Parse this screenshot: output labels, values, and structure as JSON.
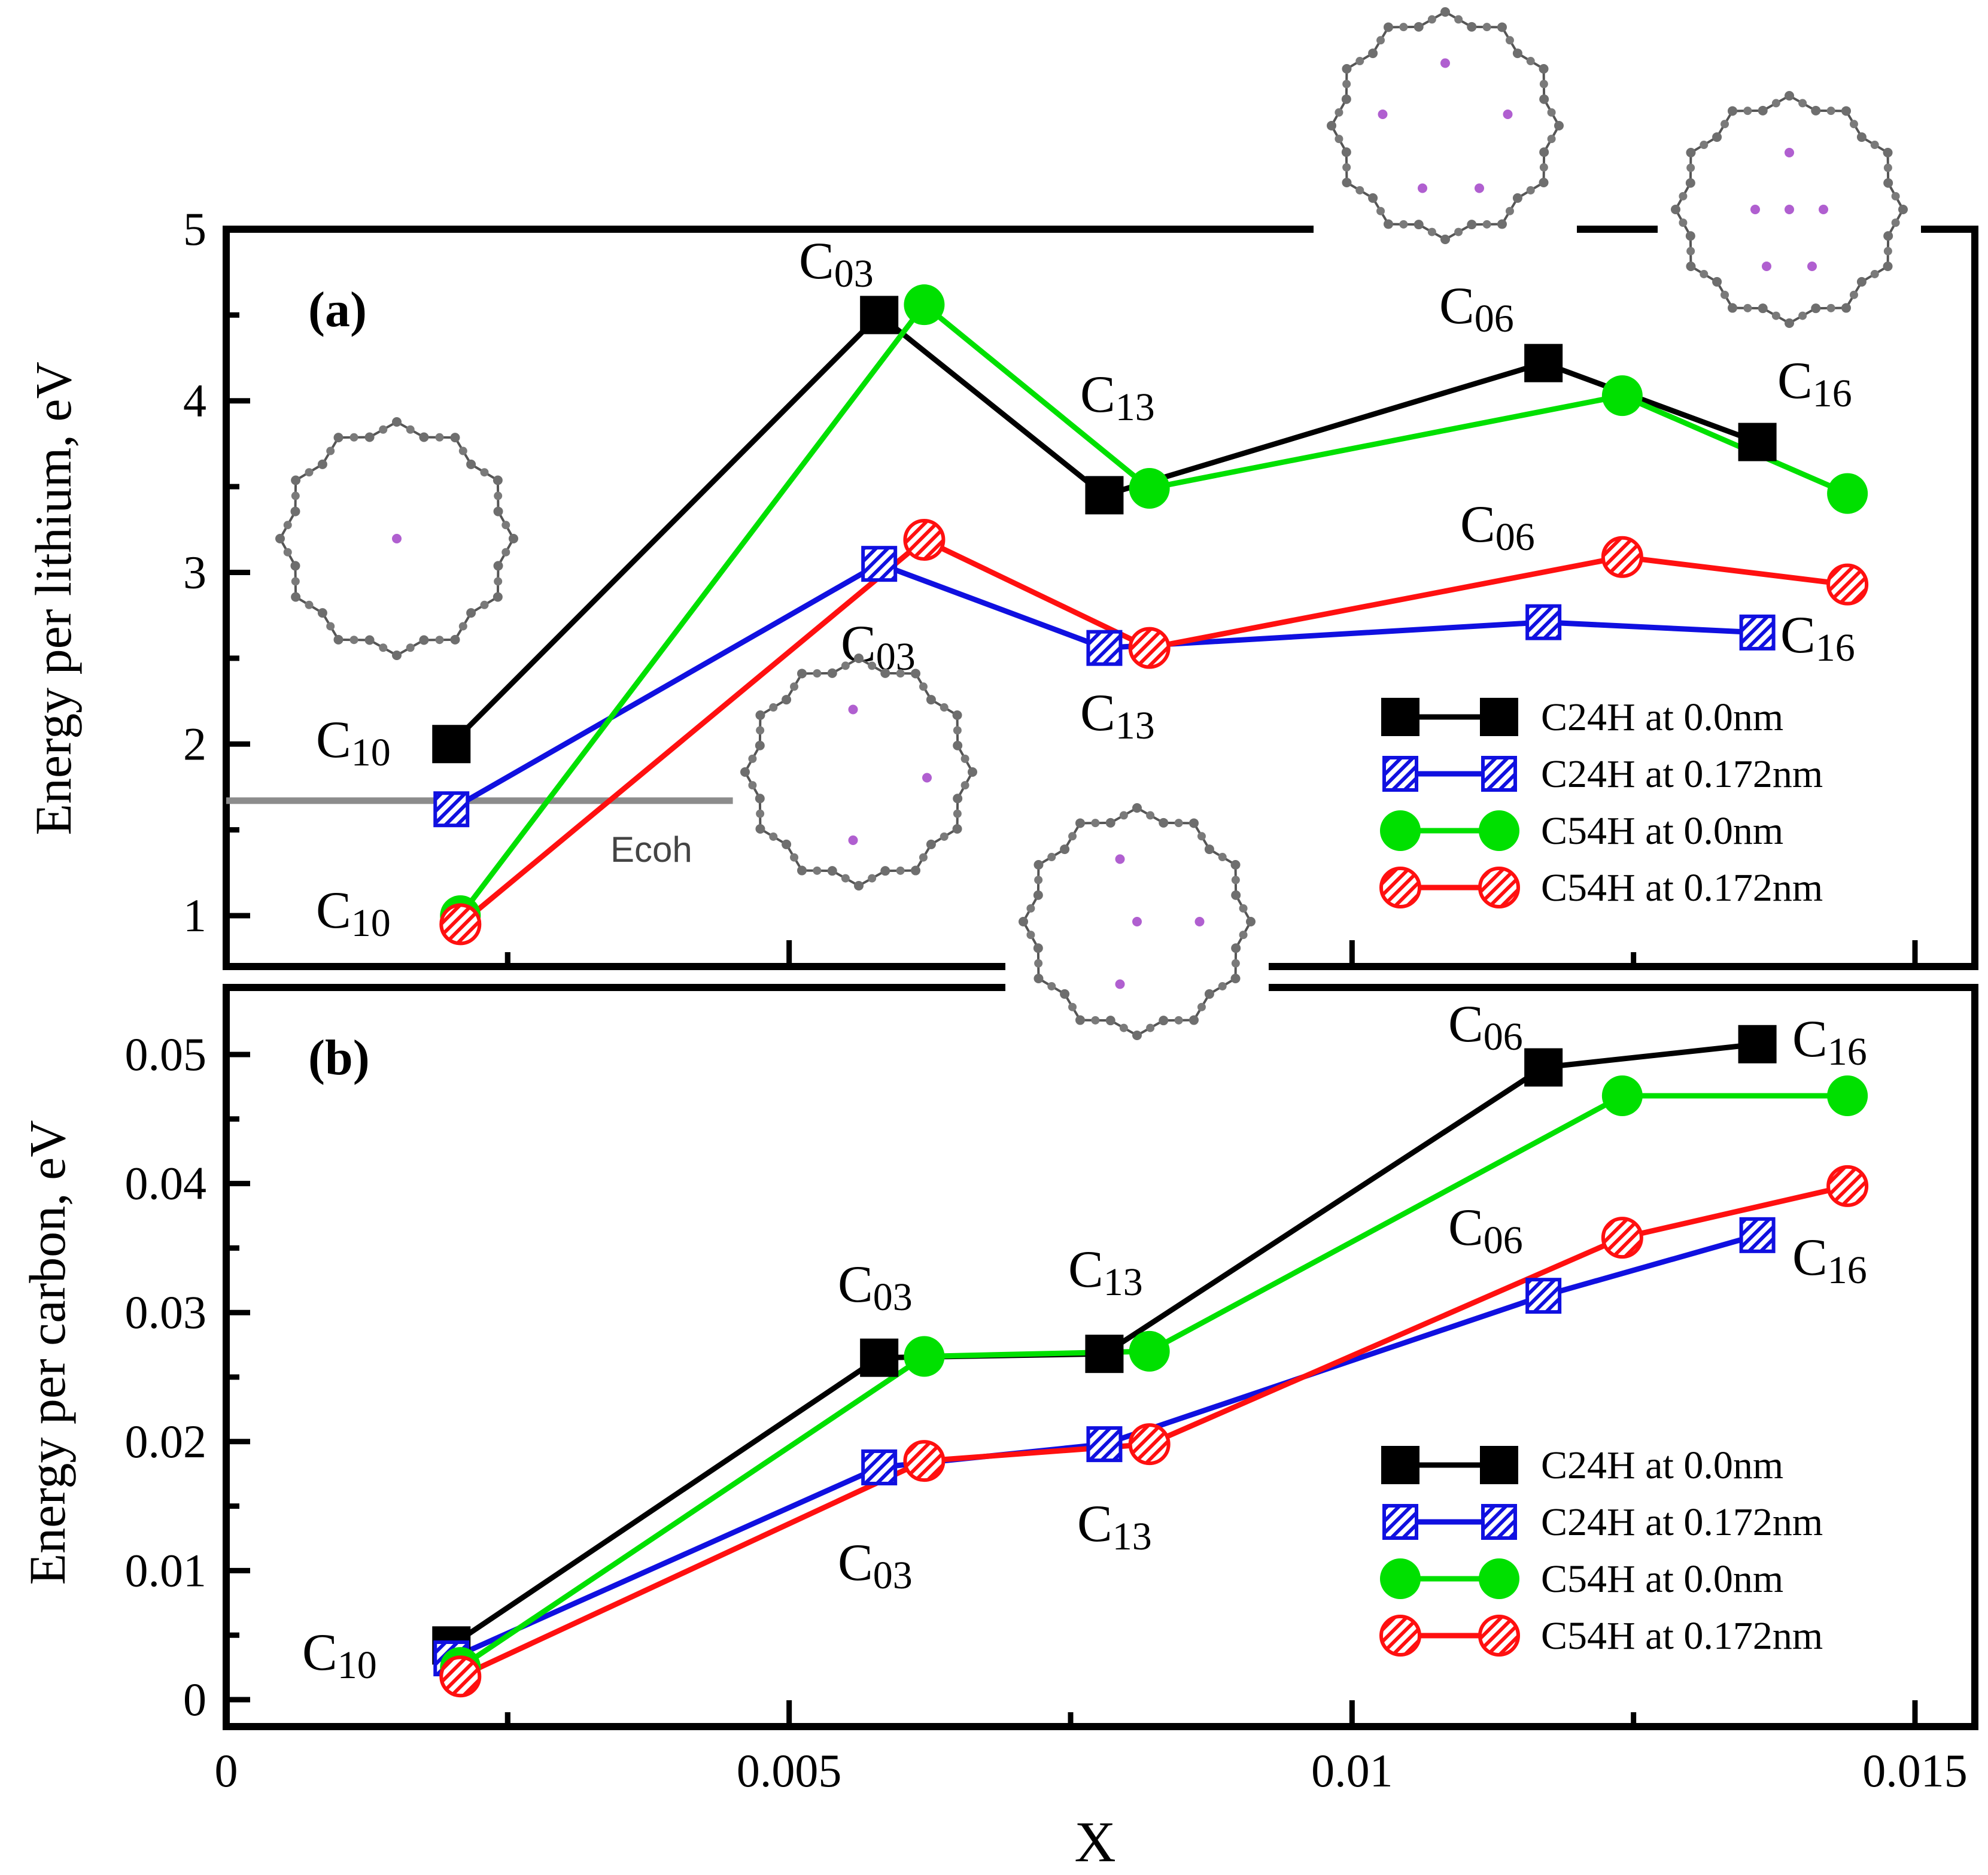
{
  "chart_data": [
    {
      "type": "line",
      "panel_label": "(a)",
      "ylabel": "Energy per lithium, eV",
      "xlabel": "X",
      "xlim": [
        0,
        0.015
      ],
      "ylim": [
        0.7,
        5.0
      ],
      "x_ticks": [
        "0",
        "0.005",
        "0.01",
        "0.015"
      ],
      "y_ticks": [
        "1",
        "2",
        "3",
        "4",
        "5"
      ],
      "x_tick_values": [
        0,
        0.005,
        0.01,
        0.015
      ],
      "y_tick_values": [
        1,
        2,
        3,
        4,
        5
      ],
      "reference_line": {
        "label": "Ecoh",
        "y": 1.67,
        "x_range": [
          0,
          0.0045
        ]
      },
      "legend_position": "bottom-right",
      "series": [
        {
          "name": "C24H at 0.0nm",
          "color": "#000000",
          "marker": "square",
          "x": [
            0.002,
            0.0058,
            0.0078,
            0.0117,
            0.0136
          ],
          "y": [
            2.0,
            4.5,
            3.45,
            4.22,
            3.76
          ]
        },
        {
          "name": "C24H at 0.172nm",
          "color": "#1010e0",
          "marker": "hatched-square",
          "x": [
            0.002,
            0.0058,
            0.0078,
            0.0117,
            0.0136
          ],
          "y": [
            1.62,
            3.05,
            2.56,
            2.71,
            2.65
          ]
        },
        {
          "name": "C54H at 0.0nm",
          "color": "#00e000",
          "marker": "circle",
          "x": [
            0.00208,
            0.0062,
            0.0082,
            0.0124,
            0.0144
          ],
          "y": [
            1.0,
            4.56,
            3.49,
            4.03,
            3.46
          ]
        },
        {
          "name": "C54H at 0.172nm",
          "color": "#ff1010",
          "marker": "hatched-circle",
          "x": [
            0.00208,
            0.0062,
            0.0082,
            0.0124,
            0.0144
          ],
          "y": [
            0.95,
            3.19,
            2.56,
            3.09,
            2.93
          ]
        }
      ],
      "annotations": [
        {
          "main": "C",
          "sub": "10"
        },
        {
          "main": "C",
          "sub": "10"
        },
        {
          "main": "C",
          "sub": "03"
        },
        {
          "main": "C",
          "sub": "03"
        },
        {
          "main": "C",
          "sub": "13"
        },
        {
          "main": "C",
          "sub": "13"
        },
        {
          "main": "C",
          "sub": "06"
        },
        {
          "main": "C",
          "sub": "06"
        },
        {
          "main": "C",
          "sub": "16"
        },
        {
          "main": "C",
          "sub": "16"
        }
      ]
    },
    {
      "type": "line",
      "panel_label": "(b)",
      "ylabel": "Energy per carbon, eV",
      "xlabel": "X",
      "xlim": [
        0,
        0.015
      ],
      "ylim": [
        -0.003,
        0.055
      ],
      "x_ticks": [
        "0",
        "0.005",
        "0.01",
        "0.015"
      ],
      "y_ticks": [
        "0",
        "0.01",
        "0.02",
        "0.03",
        "0.04",
        "0.05"
      ],
      "x_tick_values": [
        0,
        0.005,
        0.01,
        0.015
      ],
      "y_tick_values": [
        0,
        0.01,
        0.02,
        0.03,
        0.04,
        0.05
      ],
      "legend_position": "bottom-right",
      "series": [
        {
          "name": "C24H at 0.0nm",
          "color": "#000000",
          "marker": "square",
          "x": [
            0.002,
            0.0058,
            0.0078,
            0.0117,
            0.0136
          ],
          "y": [
            0.0042,
            0.0265,
            0.0268,
            0.049,
            0.0508
          ]
        },
        {
          "name": "C24H at 0.172nm",
          "color": "#1010e0",
          "marker": "hatched-square",
          "x": [
            0.002,
            0.0058,
            0.0078,
            0.0117,
            0.0136
          ],
          "y": [
            0.0032,
            0.018,
            0.0198,
            0.0313,
            0.036
          ]
        },
        {
          "name": "C54H at 0.0nm",
          "color": "#00e000",
          "marker": "circle",
          "x": [
            0.00208,
            0.0062,
            0.0082,
            0.0124,
            0.0144
          ],
          "y": [
            0.0025,
            0.0266,
            0.027,
            0.0468,
            0.0468
          ]
        },
        {
          "name": "C54H at 0.172nm",
          "color": "#ff1010",
          "marker": "hatched-circle",
          "x": [
            0.00208,
            0.0062,
            0.0082,
            0.0124,
            0.0144
          ],
          "y": [
            0.0018,
            0.0185,
            0.0198,
            0.0358,
            0.0398
          ]
        }
      ],
      "annotations": [
        {
          "main": "C",
          "sub": "10"
        },
        {
          "main": "C",
          "sub": "03"
        },
        {
          "main": "C",
          "sub": "03"
        },
        {
          "main": "C",
          "sub": "13"
        },
        {
          "main": "C",
          "sub": "13"
        },
        {
          "main": "C",
          "sub": "06"
        },
        {
          "main": "C",
          "sub": "06"
        },
        {
          "main": "C",
          "sub": "16"
        },
        {
          "main": "C",
          "sub": "16"
        }
      ]
    }
  ]
}
